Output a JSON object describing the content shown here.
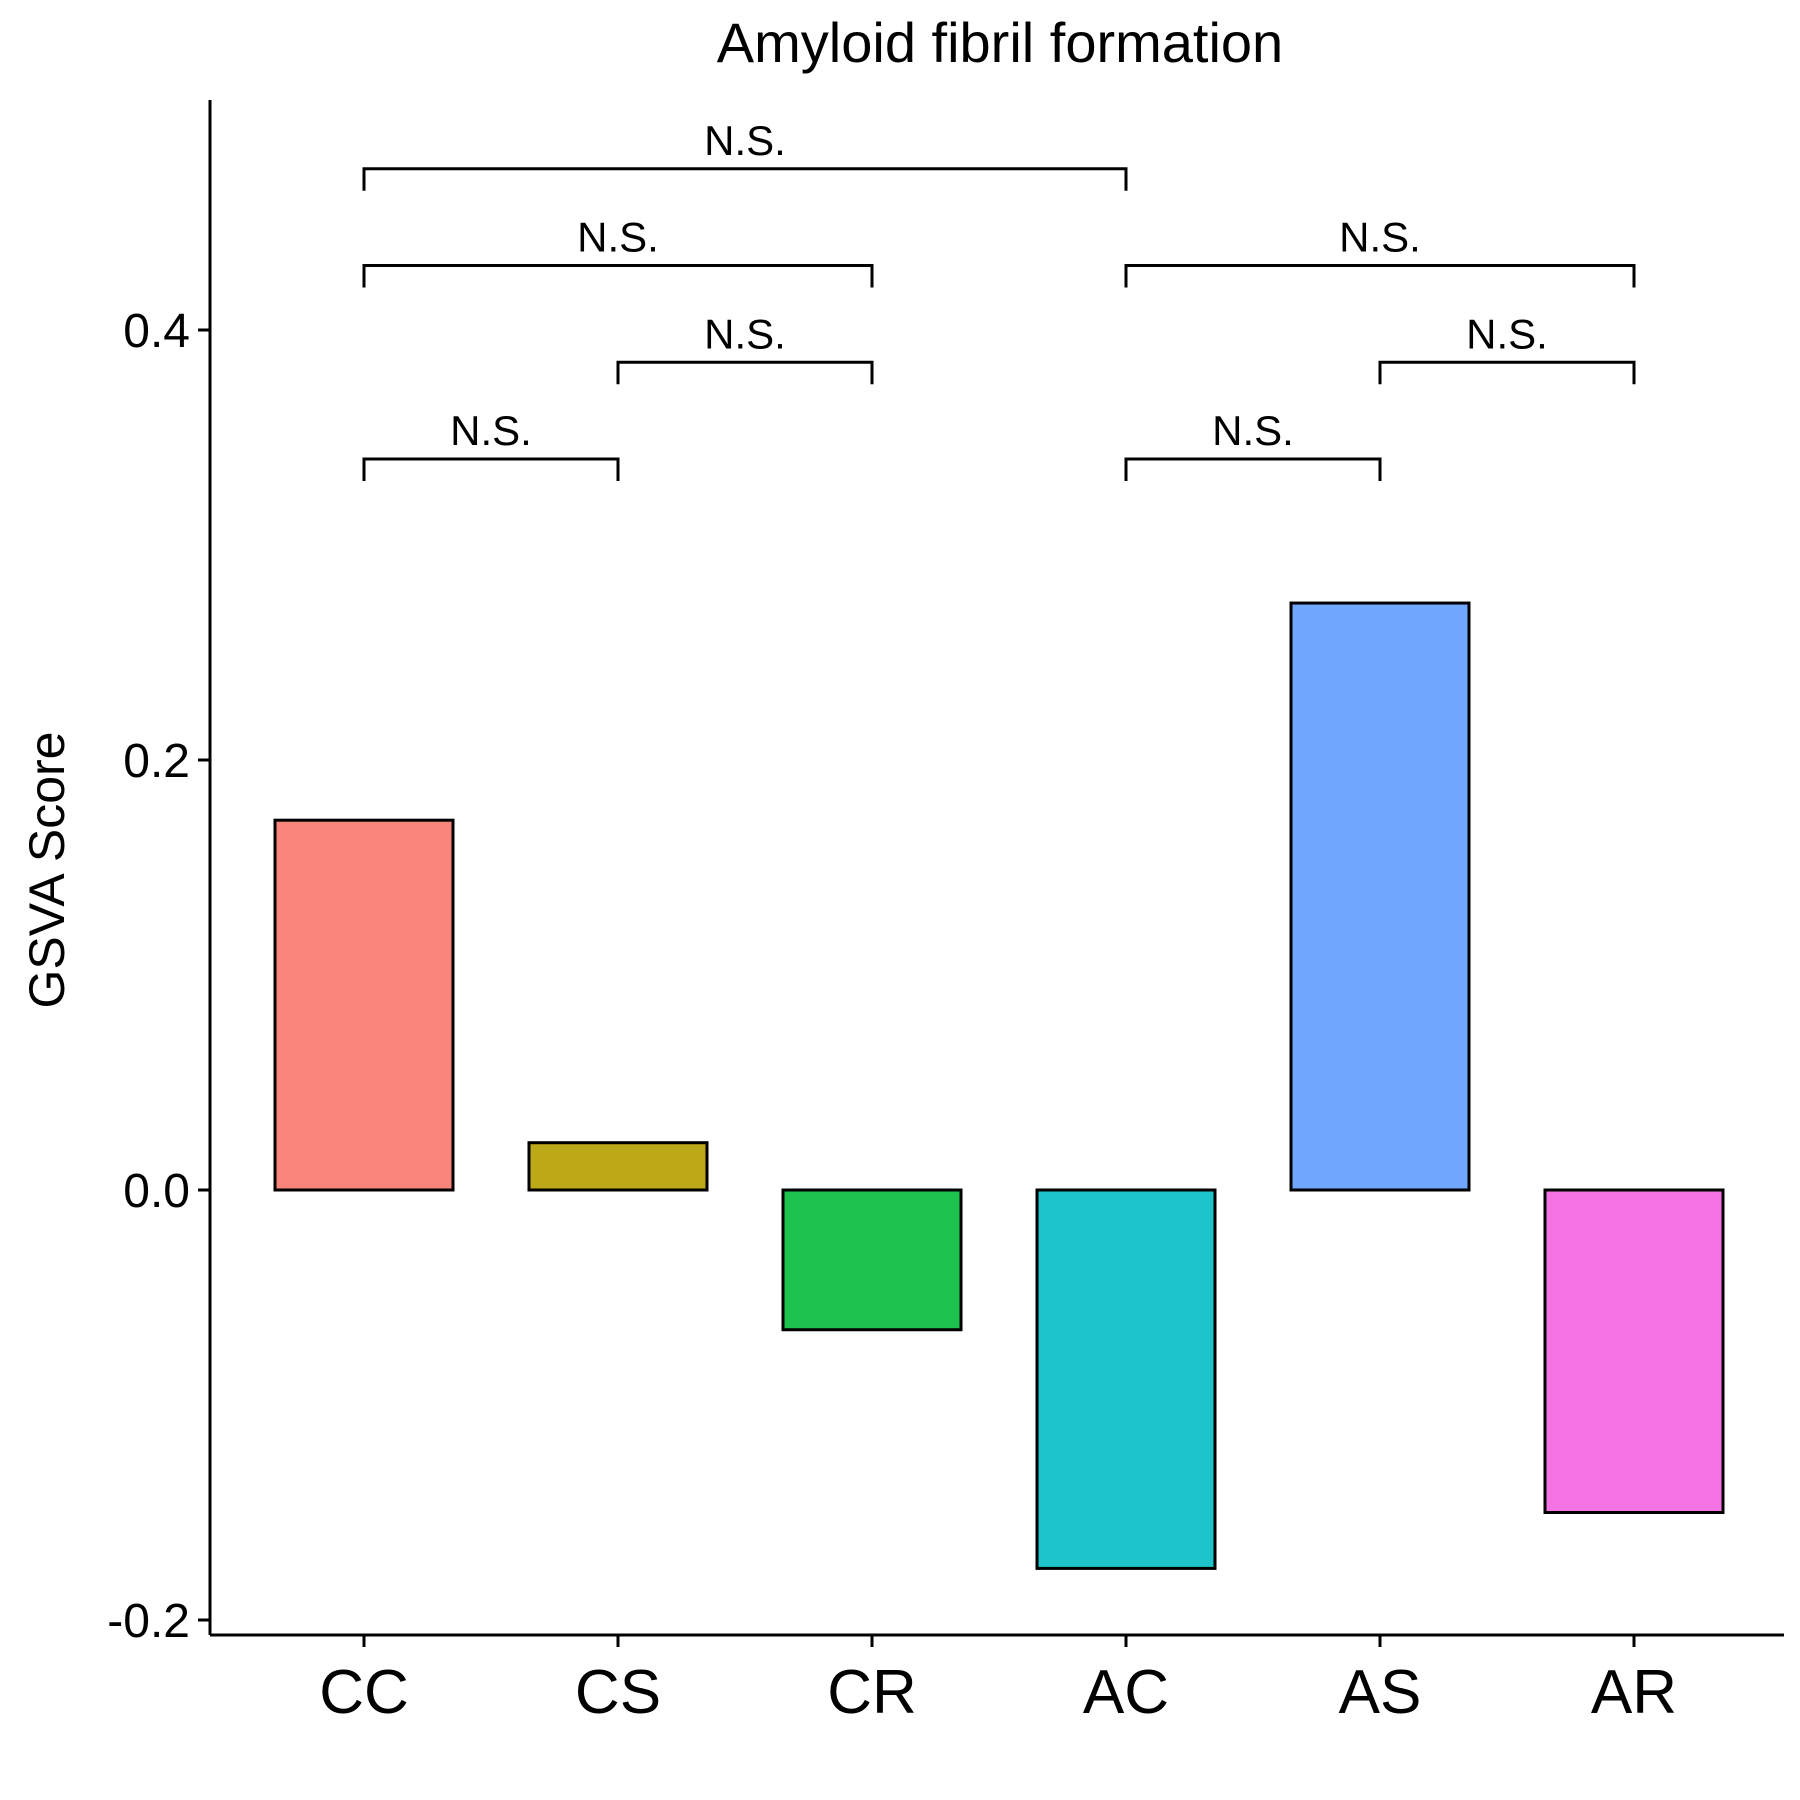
{
  "chart_data": {
    "type": "bar",
    "title": "Amyloid fibril formation",
    "xlabel": "",
    "ylabel": "GSVA Score",
    "categories": [
      "CC",
      "CS",
      "CR",
      "AC",
      "AS",
      "AR"
    ],
    "values": [
      0.172,
      0.022,
      -0.065,
      -0.176,
      0.273,
      -0.15
    ],
    "colors": [
      "#F8857C",
      "#BDA818",
      "#1DC24F",
      "#1DC5CA",
      "#70A6FD",
      "#F474E3"
    ],
    "ylim": [
      -0.2,
      0.4
    ],
    "yticks": [
      -0.2,
      0.0,
      0.2,
      0.4
    ],
    "ytick_labels": [
      "-0.2",
      "0.0",
      "0.2",
      "0.4"
    ],
    "grid": false,
    "legend": "none",
    "comparisons": [
      {
        "from": "CC",
        "to": "CS",
        "y": 0.34,
        "label": "N.S."
      },
      {
        "from": "CS",
        "to": "CR",
        "y": 0.385,
        "label": "N.S."
      },
      {
        "from": "CC",
        "to": "CR",
        "y": 0.43,
        "label": "N.S."
      },
      {
        "from": "CC",
        "to": "AC",
        "y": 0.475,
        "label": "N.S."
      },
      {
        "from": "AC",
        "to": "AS",
        "y": 0.34,
        "label": "N.S."
      },
      {
        "from": "AS",
        "to": "AR",
        "y": 0.385,
        "label": "N.S."
      },
      {
        "from": "AC",
        "to": "AR",
        "y": 0.43,
        "label": "N.S."
      }
    ]
  }
}
